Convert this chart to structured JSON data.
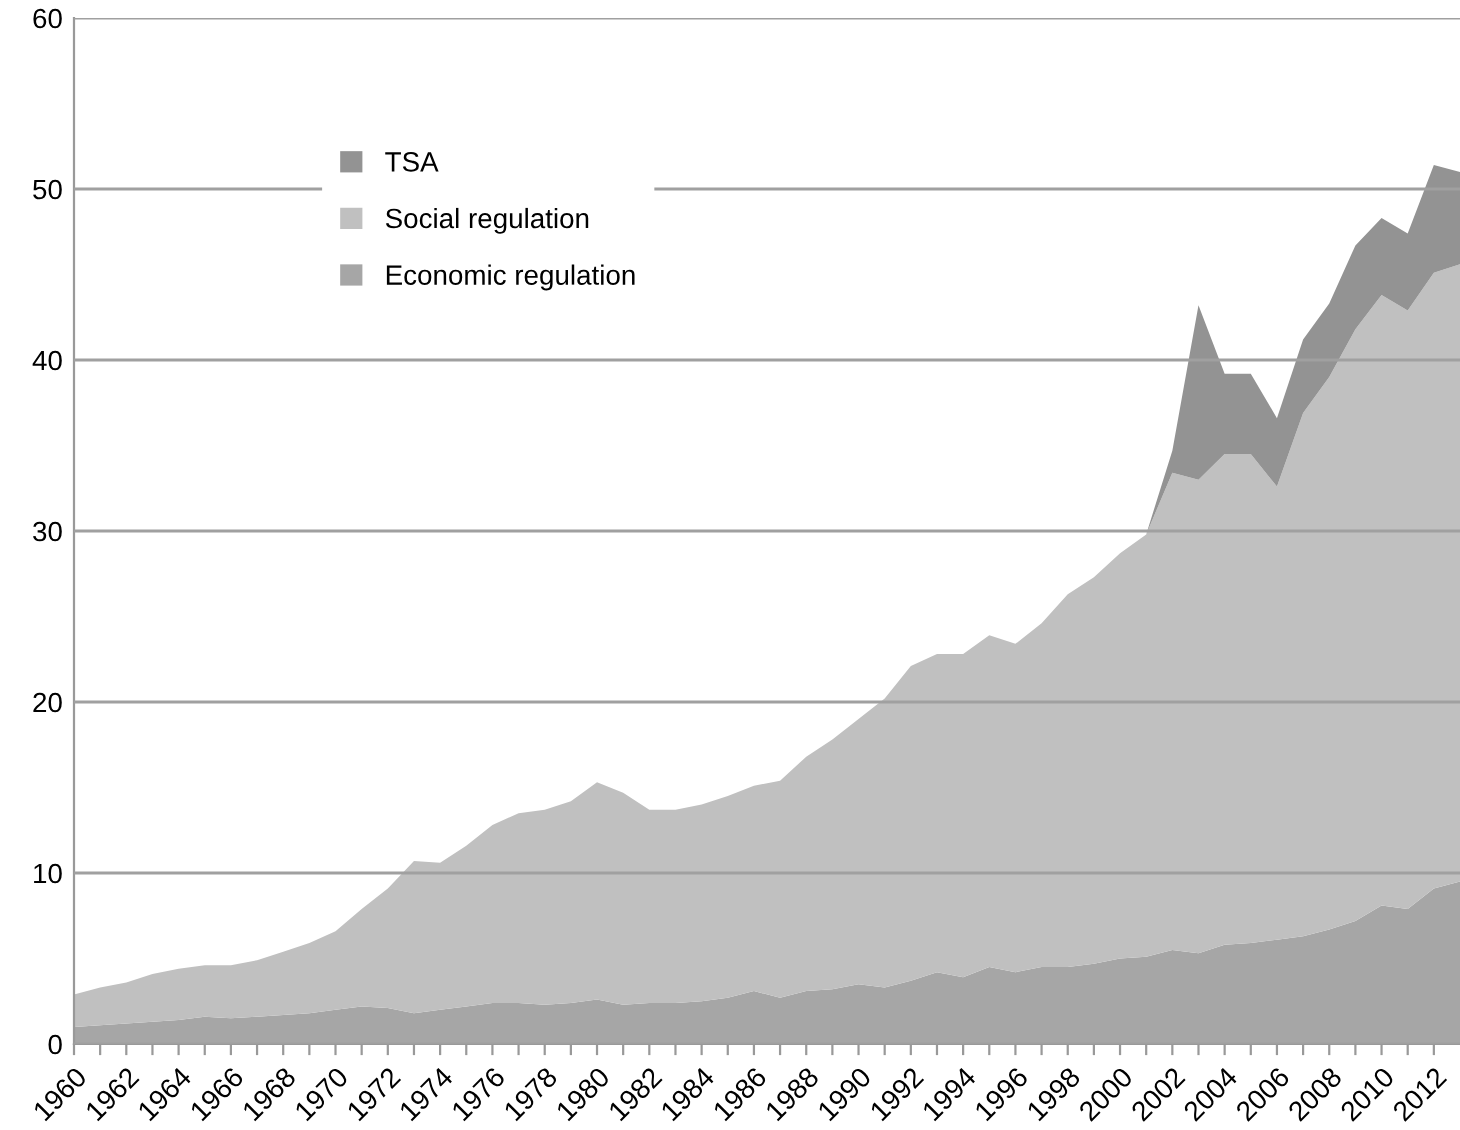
{
  "chart_data": {
    "type": "area",
    "stacked": true,
    "x": [
      1960,
      1961,
      1962,
      1963,
      1964,
      1965,
      1966,
      1967,
      1968,
      1969,
      1970,
      1971,
      1972,
      1973,
      1974,
      1975,
      1976,
      1977,
      1978,
      1979,
      1980,
      1981,
      1982,
      1983,
      1984,
      1985,
      1986,
      1987,
      1988,
      1989,
      1990,
      1991,
      1992,
      1993,
      1994,
      1995,
      1996,
      1997,
      1998,
      1999,
      2000,
      2001,
      2002,
      2003,
      2004,
      2005,
      2006,
      2007,
      2008,
      2009,
      2010,
      2011,
      2012,
      2013
    ],
    "series": [
      {
        "name": "Economic regulation",
        "color": "#a6a6a6",
        "values": [
          1.0,
          1.1,
          1.2,
          1.3,
          1.4,
          1.6,
          1.5,
          1.6,
          1.7,
          1.8,
          2.0,
          2.2,
          2.1,
          1.8,
          2.0,
          2.2,
          2.4,
          2.4,
          2.3,
          2.4,
          2.6,
          2.3,
          2.4,
          2.4,
          2.5,
          2.7,
          3.1,
          2.7,
          3.1,
          3.2,
          3.5,
          3.3,
          3.7,
          4.2,
          3.9,
          4.5,
          4.2,
          4.5,
          4.5,
          4.7,
          5.0,
          5.1,
          5.5,
          5.3,
          5.8,
          5.9,
          6.1,
          6.3,
          6.7,
          7.2,
          8.1,
          7.9,
          9.1,
          9.5
        ]
      },
      {
        "name": "Social regulation",
        "color": "#c0c0c0",
        "values": [
          1.9,
          2.2,
          2.4,
          2.8,
          3.0,
          3.0,
          3.1,
          3.3,
          3.7,
          4.1,
          4.6,
          5.7,
          7.0,
          8.9,
          8.6,
          9.4,
          10.4,
          11.1,
          11.4,
          11.8,
          12.7,
          12.4,
          11.3,
          11.3,
          11.5,
          11.8,
          12.0,
          12.7,
          13.7,
          14.6,
          15.5,
          16.9,
          18.4,
          18.6,
          18.9,
          19.4,
          19.2,
          20.1,
          21.8,
          22.6,
          23.7,
          24.7,
          27.9,
          27.7,
          28.7,
          28.6,
          26.5,
          30.6,
          32.3,
          34.6,
          35.7,
          35.0,
          36.0,
          36.1
        ]
      },
      {
        "name": "TSA",
        "color": "#939393",
        "values": [
          null,
          null,
          null,
          null,
          null,
          null,
          null,
          null,
          null,
          null,
          null,
          null,
          null,
          null,
          null,
          null,
          null,
          null,
          null,
          null,
          null,
          null,
          null,
          null,
          null,
          null,
          null,
          null,
          null,
          null,
          null,
          null,
          null,
          null,
          null,
          null,
          null,
          null,
          null,
          null,
          null,
          0,
          1.3,
          10.2,
          4.7,
          4.7,
          4.0,
          4.3,
          4.3,
          4.9,
          4.5,
          4.5,
          6.3,
          5.4
        ]
      }
    ],
    "xlim": [
      1960,
      2013
    ],
    "xticks": [
      1960,
      {
        "value": 1961,
        "label": null
      },
      1962,
      {
        "value": 1963,
        "label": null
      },
      1964,
      {
        "value": 1965,
        "label": null
      },
      1966,
      {
        "value": 1967,
        "label": null
      },
      1968,
      {
        "value": 1969,
        "label": null
      },
      1970,
      {
        "value": 1971,
        "label": null
      },
      1972,
      {
        "value": 1973,
        "label": null
      },
      1974,
      {
        "value": 1975,
        "label": null
      },
      1976,
      {
        "value": 1977,
        "label": null
      },
      1978,
      {
        "value": 1979,
        "label": null
      },
      1980,
      {
        "value": 1981,
        "label": null
      },
      1982,
      {
        "value": 1983,
        "label": null
      },
      1984,
      {
        "value": 1985,
        "label": null
      },
      1986,
      {
        "value": 1987,
        "label": null
      },
      1988,
      {
        "value": 1989,
        "label": null
      },
      1990,
      {
        "value": 1991,
        "label": null
      },
      1992,
      {
        "value": 1993,
        "label": null
      },
      1994,
      {
        "value": 1995,
        "label": null
      },
      1996,
      {
        "value": 1997,
        "label": null
      },
      1998,
      {
        "value": 1999,
        "label": null
      },
      2000,
      {
        "value": 2001,
        "label": null
      },
      2002,
      {
        "value": 2003,
        "label": null
      },
      2004,
      {
        "value": 2005,
        "label": null
      },
      2006,
      {
        "value": 2007,
        "label": null
      },
      2008,
      {
        "value": 2009,
        "label": null
      },
      2010,
      {
        "value": 2011,
        "label": null
      },
      2012
    ],
    "ylim": [
      0,
      60
    ],
    "yticks": [
      0,
      10,
      20,
      30,
      40,
      50,
      60
    ],
    "grid": "y",
    "legend": "top left"
  }
}
